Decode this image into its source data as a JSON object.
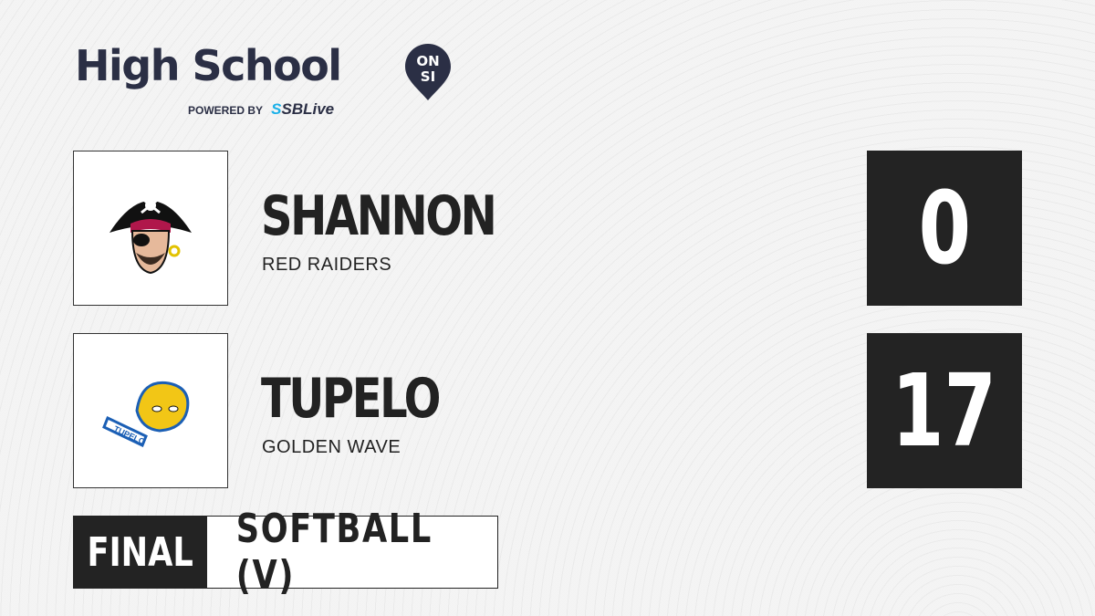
{
  "brand": {
    "title": "High School",
    "badge_top": "ON",
    "badge_bottom": "SI",
    "powered_by": "POWERED BY",
    "partner_prefix": "S",
    "partner": "SBLive",
    "colors": {
      "navy": "#2b2f45",
      "accent": "#1ab0e8"
    }
  },
  "teams": [
    {
      "name": "SHANNON",
      "mascot": "RED RAIDERS",
      "score": "0",
      "logo_icon": "pirate-logo"
    },
    {
      "name": "TUPELO",
      "mascot": "GOLDEN WAVE",
      "score": "17",
      "logo_icon": "golden-wave-logo"
    }
  ],
  "game": {
    "status": "FINAL",
    "sport": "SOFTBALL (V)"
  }
}
